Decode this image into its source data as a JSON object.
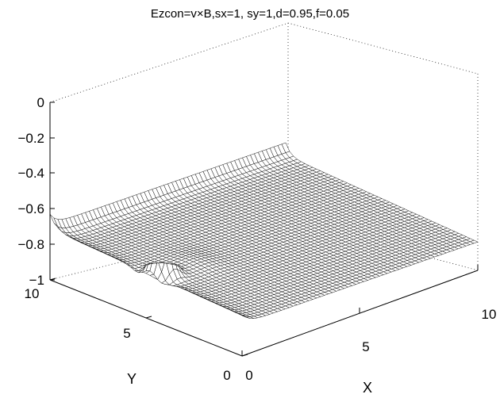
{
  "chart_data": {
    "type": "surface",
    "title": "Ezcon=v×B,sx=1, sy=1,d=0.95,f=0.05",
    "xlabel": "X",
    "ylabel": "Y",
    "zlabel": "",
    "xlim": [
      0,
      10
    ],
    "ylim": [
      0,
      10
    ],
    "zlim": [
      -1,
      0
    ],
    "x_ticks": [
      "0",
      "5",
      "10"
    ],
    "y_ticks": [
      "0",
      "5",
      "10"
    ],
    "z_ticks": [
      "0",
      "−0.2",
      "−0.4",
      "−0.6",
      "−0.8",
      "−1"
    ],
    "grid": "off",
    "colormap": "white faces, black mesh",
    "surface": {
      "base_level": -0.8,
      "peak": {
        "x": 0.6,
        "y": 5,
        "z": -0.45
      },
      "trough": {
        "x": 0.3,
        "y": 5,
        "z": -0.97
      },
      "edge_ridge_y10_level": -0.73
    }
  }
}
